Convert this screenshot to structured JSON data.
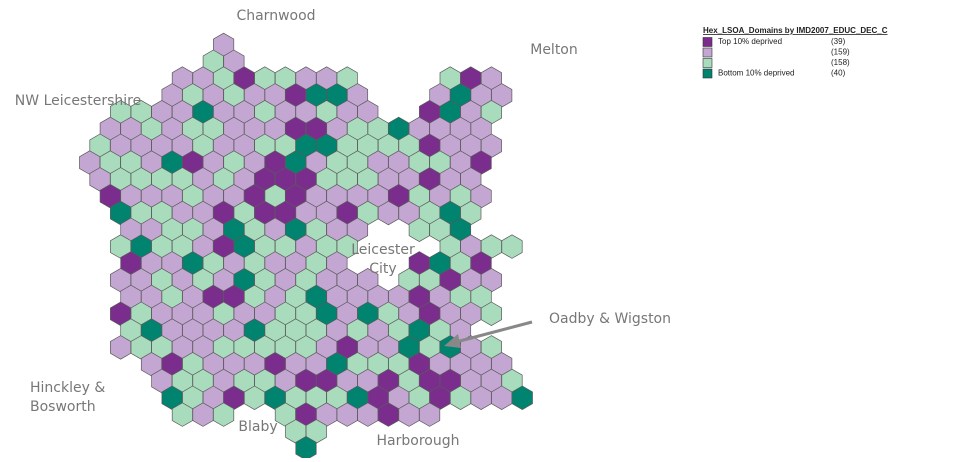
{
  "map": {
    "region_labels": [
      {
        "lines": [
          "Charnwood"
        ]
      },
      {
        "lines": [
          "Melton"
        ]
      },
      {
        "lines": [
          "NW Leicestershire"
        ]
      },
      {
        "lines": [
          "Leicester",
          "City"
        ]
      },
      {
        "lines": [
          "Oadby & Wigston"
        ]
      },
      {
        "lines": [
          "Hinckley &",
          "Bosworth"
        ]
      },
      {
        "lines": [
          "Blaby"
        ]
      },
      {
        "lines": [
          "Harborough"
        ]
      }
    ],
    "legend": {
      "title": "Hex_LSOA_Domains by IMD2007_EDUC_DEC_C",
      "items": [
        {
          "label": "Top 10% deprived",
          "count": "(39)",
          "color": "#7b2d8e"
        },
        {
          "count": "(159)",
          "color": "#c3a6d2"
        },
        {
          "count": "(158)",
          "color": "#a8dcbc"
        },
        {
          "label": "Bottom 10% deprived",
          "count": "(40)",
          "color": "#00836f"
        }
      ]
    }
  }
}
